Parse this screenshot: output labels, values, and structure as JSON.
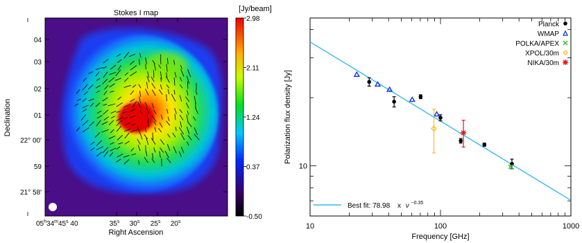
{
  "chart_data": [
    {
      "type": "heatmap",
      "title": "Stokes I map",
      "xlabel": "Right Ascension",
      "ylabel": "Declination",
      "x_ticks": [
        {
          "h": "05",
          "m": "34",
          "s": "45",
          "rest": "40"
        },
        {
          "s": "35"
        },
        {
          "s": "30"
        },
        {
          "s": "25"
        },
        {
          "s": "20"
        }
      ],
      "y_ticks": [
        {
          "label": "04"
        },
        {
          "label": "03"
        },
        {
          "label": "02"
        },
        {
          "label": "01"
        },
        {
          "label": "22° 00′"
        },
        {
          "label": "59"
        },
        {
          "label": "21° 58′"
        }
      ],
      "colorbar": {
        "unit": "[Jy/beam]",
        "range": [
          -0.5,
          2.98
        ],
        "ticks": [
          "2.98",
          "2.11",
          "1.24",
          "0.37",
          "-0.50"
        ],
        "colormap": "rainbow (black-purple-blue-cyan-green-yellow-red)"
      },
      "overlay": "polarization vectors (black line segments) over central emission",
      "beam": "white filled circle, lower-left corner"
    },
    {
      "type": "scatter",
      "xlabel": "Frequency [GHz]",
      "ylabel": "Polarization flux density [Jy]",
      "x_scale": "log",
      "y_scale": "log",
      "xlim": [
        10,
        1000
      ],
      "ylim": [
        6,
        45
      ],
      "x_tick_labels": [
        "10",
        "100",
        "1000"
      ],
      "y_tick_labels": [
        "10"
      ],
      "fit": {
        "label": "Best fit: 78.98",
        "times": "x",
        "nu": "ν",
        "exponent_text": "−0.35",
        "amplitude": 78.98,
        "exponent": -0.35,
        "color": "#33bbee"
      },
      "series": [
        {
          "name": "Planck",
          "marker": "filled-circle",
          "color": "#000000",
          "points": [
            {
              "x": 28.4,
              "y": 23.5,
              "err": 1.0
            },
            {
              "x": 44.1,
              "y": 19.2,
              "err": 1.0
            },
            {
              "x": 70.4,
              "y": 20.2,
              "err": 0.4
            },
            {
              "x": 100,
              "y": 16.3,
              "err": 0.5
            },
            {
              "x": 143,
              "y": 12.9,
              "err": 0.3
            },
            {
              "x": 217,
              "y": 12.4,
              "err": 0.2
            },
            {
              "x": 353,
              "y": 10.2,
              "err": 0.5
            }
          ]
        },
        {
          "name": "WMAP",
          "marker": "open-triangle",
          "color": "#1133ee",
          "points": [
            {
              "x": 22.8,
              "y": 25.3
            },
            {
              "x": 33.0,
              "y": 22.9
            },
            {
              "x": 40.7,
              "y": 21.7
            },
            {
              "x": 60.7,
              "y": 19.6
            },
            {
              "x": 93.5,
              "y": 16.9
            }
          ]
        },
        {
          "name": "POLKA/APEX",
          "marker": "cross",
          "color": "#22cc22",
          "points": [
            {
              "x": 345,
              "y": 9.9
            }
          ]
        },
        {
          "name": "XPOL/30m",
          "marker": "open-diamond",
          "color": "#ffbb22",
          "points": [
            {
              "x": 89.0,
              "y": 14.6,
              "err": 3.2
            }
          ]
        },
        {
          "name": "NIKA/30m",
          "marker": "asterisk",
          "color": "#ee1111",
          "points": [
            {
              "x": 150,
              "y": 14.0,
              "err": 1.9
            }
          ]
        }
      ]
    }
  ]
}
